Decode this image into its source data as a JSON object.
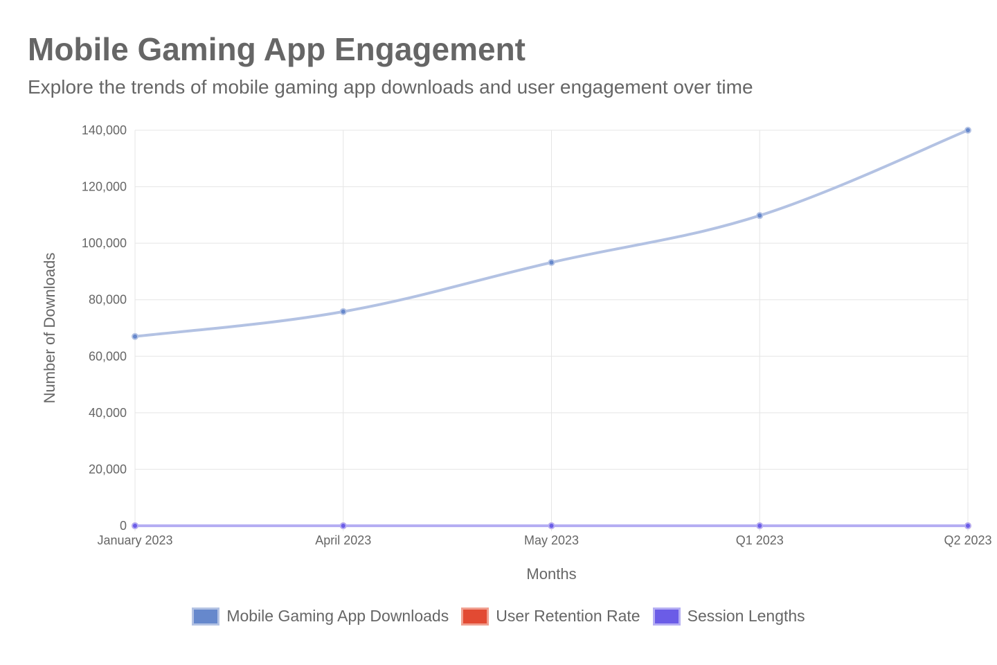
{
  "title": "Mobile Gaming App Engagement",
  "subtitle": "Explore the trends of mobile gaming app downloads and user engagement over time",
  "chart_data": {
    "type": "line",
    "title": "Mobile Gaming App Engagement",
    "subtitle": "Explore the trends of mobile gaming app downloads and user engagement over time",
    "xlabel": "Months",
    "ylabel": "Number of Downloads",
    "categories": [
      "January 2023",
      "April 2023",
      "May 2023",
      "Q1 2023",
      "Q2 2023"
    ],
    "ylim": [
      0,
      140000
    ],
    "yticks": [
      0,
      20000,
      40000,
      60000,
      80000,
      100000,
      120000,
      140000
    ],
    "ytick_labels": [
      "0",
      "20,000",
      "40,000",
      "60,000",
      "80,000",
      "100,000",
      "120,000",
      "140,000"
    ],
    "grid": true,
    "legend_position": "bottom",
    "series": [
      {
        "name": "Mobile Gaming App Downloads",
        "values": [
          67000,
          75800,
          93200,
          109800,
          140000
        ],
        "color": "#6688cc",
        "line_color": "#b3c2e3"
      },
      {
        "name": "User Retention Rate",
        "values": [
          0,
          0,
          0,
          0,
          0
        ],
        "color": "#e24a33",
        "line_color": "#f0a090"
      },
      {
        "name": "Session Lengths",
        "values": [
          0,
          0,
          0,
          0,
          0
        ],
        "color": "#6b5ce7",
        "line_color": "#b5aef3"
      }
    ]
  }
}
